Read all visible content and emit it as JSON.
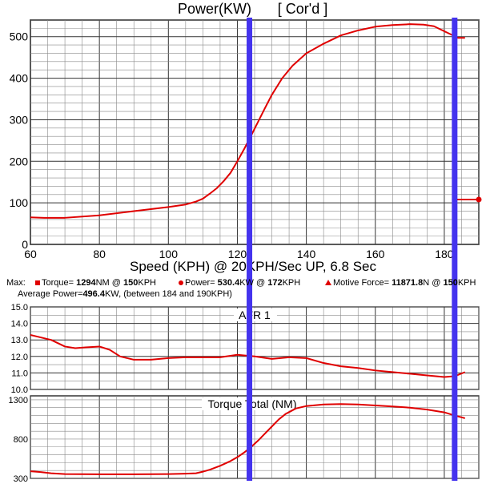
{
  "chart_data": [
    {
      "type": "line",
      "title": "Power(KW)",
      "subtitle": "[ Cor'd ]",
      "xlabel": "Speed (KPH) @ 20KPH/Sec UP, 6.8 Sec",
      "ylabel": "",
      "xlim": [
        60,
        190
      ],
      "ylim": [
        0,
        540
      ],
      "x_ticks": [
        "60",
        "80",
        "100",
        "120",
        "140",
        "160",
        "180"
      ],
      "y_ticks": [
        "0",
        "100",
        "200",
        "300",
        "400",
        "500"
      ],
      "grid": true,
      "line_color": "#e00000",
      "marker_color": "#4433ee",
      "markers_x": [
        123.5,
        183
      ],
      "series": [
        {
          "x": [
            60,
            64,
            70,
            80,
            90,
            100,
            105,
            108,
            110,
            112,
            114,
            116,
            118,
            120,
            122,
            124,
            126,
            128,
            130,
            133,
            136,
            140,
            145,
            150,
            155,
            160,
            165,
            170,
            174,
            177,
            180,
            182,
            184,
            186
          ],
          "y": [
            65,
            64,
            64,
            70,
            80,
            90,
            96,
            103,
            110,
            122,
            135,
            152,
            172,
            200,
            230,
            262,
            295,
            328,
            360,
            400,
            430,
            460,
            483,
            503,
            515,
            524,
            528,
            530,
            529,
            525,
            513,
            505,
            497,
            497
          ]
        },
        {
          "x": [
            183,
            185,
            190
          ],
          "y": [
            108,
            108,
            108
          ]
        }
      ]
    },
    {
      "type": "line",
      "title": "AFR 1",
      "xlim": [
        60,
        190
      ],
      "ylim": [
        10,
        15
      ],
      "y_ticks": [
        "15.0",
        "14.0",
        "13.0",
        "12.0",
        "11.0",
        "10.0"
      ],
      "grid": true,
      "series": [
        {
          "x": [
            60,
            62,
            66,
            70,
            73,
            76,
            80,
            83,
            86,
            90,
            95,
            100,
            105,
            110,
            115,
            120,
            125,
            130,
            135,
            140,
            145,
            150,
            155,
            160,
            165,
            170,
            175,
            180,
            183,
            186
          ],
          "y": [
            13.3,
            13.2,
            13.0,
            12.6,
            12.5,
            12.55,
            12.6,
            12.4,
            12.0,
            11.8,
            11.8,
            11.9,
            11.95,
            11.95,
            11.95,
            12.1,
            12.0,
            11.85,
            11.95,
            11.9,
            11.6,
            11.4,
            11.3,
            11.15,
            11.05,
            10.95,
            10.85,
            10.75,
            10.8,
            11.05
          ]
        }
      ]
    },
    {
      "type": "line",
      "title": "Torque Total (NM)",
      "xlim": [
        60,
        190
      ],
      "ylim": [
        300,
        1350
      ],
      "y_ticks": [
        "1300",
        "800",
        "300"
      ],
      "grid": true,
      "series": [
        {
          "x": [
            60,
            63,
            66,
            70,
            80,
            90,
            100,
            105,
            108,
            110,
            112,
            115,
            118,
            120,
            122,
            124,
            126,
            128,
            130,
            132,
            134,
            137,
            140,
            145,
            150,
            155,
            160,
            165,
            170,
            175,
            180,
            183,
            186
          ],
          "y": [
            390,
            380,
            365,
            355,
            352,
            352,
            355,
            360,
            365,
            385,
            410,
            460,
            520,
            570,
            630,
            700,
            780,
            870,
            960,
            1050,
            1120,
            1190,
            1220,
            1240,
            1245,
            1240,
            1228,
            1215,
            1200,
            1175,
            1140,
            1100,
            1065
          ]
        }
      ]
    }
  ],
  "legend": {
    "max_label": "Max:",
    "torque": {
      "prefix": "Torque= ",
      "value": "1294",
      "unit": "NM @ ",
      "at": "150",
      "suffix": "KPH"
    },
    "power": {
      "prefix": "Power= ",
      "value": "530.4",
      "unit": "KW @ ",
      "at": "172",
      "suffix": "KPH"
    },
    "force": {
      "prefix": "Motive Force= ",
      "value": "11871.8",
      "unit": "N @ ",
      "at": "150",
      "suffix": "KPH"
    },
    "avg": {
      "prefix": "Average Power=",
      "value": "496.4",
      "suffix": "KW, (between 184 and 190KPH)"
    }
  }
}
